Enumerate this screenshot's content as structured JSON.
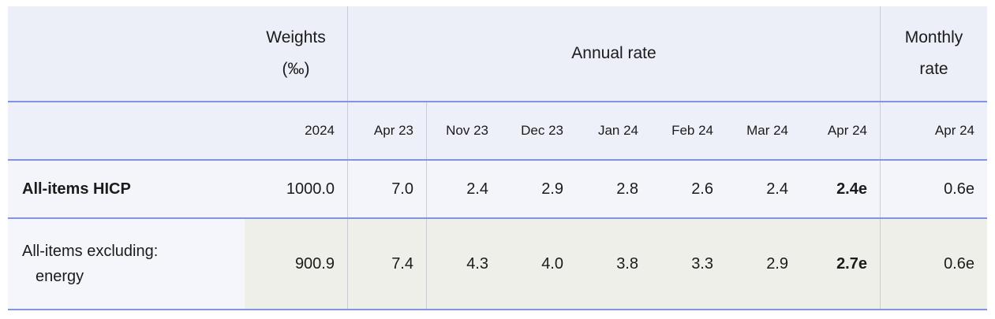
{
  "colors": {
    "rule_blue": "#8393e4",
    "header_bg": "#eceef8",
    "subheader_bg": "#eef0f9",
    "row1_bg": "#f4f5fb",
    "row2_bg": "#efefe9",
    "row2_label_bg": "#f5f5fc",
    "divider_gray": "#c9cdd8",
    "text": "#1b1b1b"
  },
  "table": {
    "header": {
      "weights_line1": "Weights",
      "weights_line2": "(‰)",
      "annual_rate": "Annual rate",
      "monthly_line1": "Monthly",
      "monthly_line2": "rate"
    },
    "subheader": {
      "weights_year": "2024",
      "months": [
        "Apr 23",
        "Nov 23",
        "Dec 23",
        "Jan 24",
        "Feb 24",
        "Mar 24",
        "Apr 24"
      ],
      "monthly_month": "Apr 24"
    },
    "rows": [
      {
        "label": "All-items HICP",
        "label_line2": "",
        "weight": "1000.0",
        "values": [
          "7.0",
          "2.4",
          "2.9",
          "2.8",
          "2.6",
          "2.4"
        ],
        "flash": "2.4e",
        "monthly": "0.6e"
      },
      {
        "label": "All-items excluding:",
        "label_line2": "energy",
        "weight": "900.9",
        "values": [
          "7.4",
          "4.3",
          "4.0",
          "3.8",
          "3.3",
          "2.9"
        ],
        "flash": "2.7e",
        "monthly": "0.6e"
      }
    ]
  },
  "chart_data": {
    "type": "table",
    "title": "",
    "header_groups": [
      {
        "label": "Weights (‰)",
        "span": 1
      },
      {
        "label": "Annual rate",
        "span": 7
      },
      {
        "label": "Monthly rate",
        "span": 1
      }
    ],
    "columns": [
      "2024",
      "Apr 23",
      "Nov 23",
      "Dec 23",
      "Jan 24",
      "Feb 24",
      "Mar 24",
      "Apr 24",
      "Apr 24"
    ],
    "rows": [
      {
        "label": "All-items HICP",
        "values": [
          1000.0,
          7.0,
          2.4,
          2.9,
          2.8,
          2.6,
          2.4,
          "2.4e",
          "0.6e"
        ]
      },
      {
        "label": "All-items excluding: energy",
        "values": [
          900.9,
          7.4,
          4.3,
          4.0,
          3.8,
          3.3,
          2.9,
          "2.7e",
          "0.6e"
        ]
      }
    ],
    "notes": "e = flash estimate (bold in last annual column); grid off; blue horizontal rules between rows"
  }
}
